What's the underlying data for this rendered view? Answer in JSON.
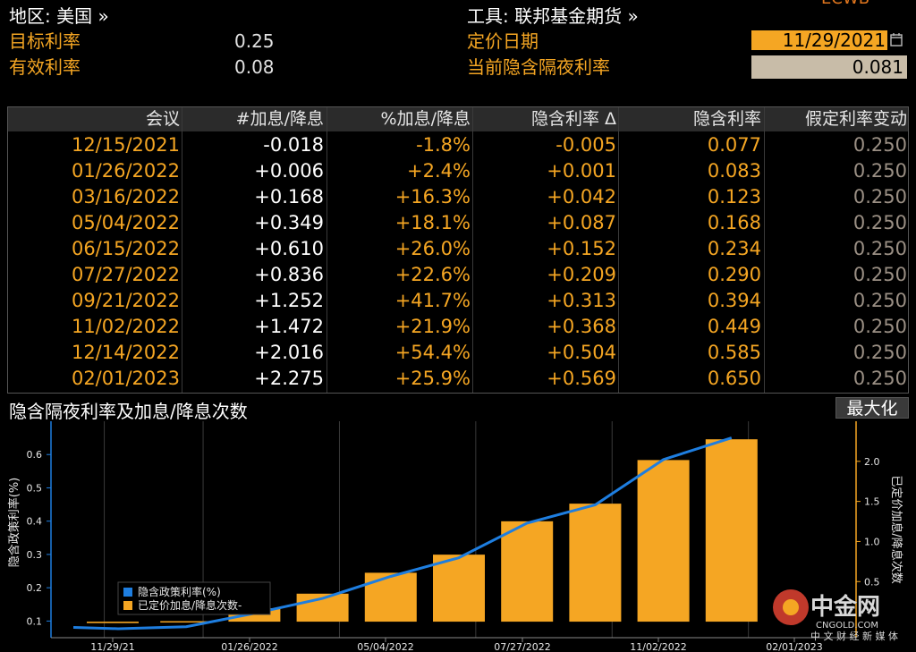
{
  "header": {
    "region_label": "地区: 美国 »",
    "instrument_label": "工具: 联邦基金期货 »",
    "target_rate_label": "目标利率",
    "target_rate_value": "0.25",
    "effective_rate_label": "有效利率",
    "effective_rate_value": "0.08",
    "pricing_date_label": "定价日期",
    "pricing_date_value": "11/29/2021",
    "implied_overnight_label": "当前隐含隔夜利率",
    "implied_overnight_value": "0.081",
    "top_right_cut": "ECWB"
  },
  "table": {
    "columns": [
      "会议",
      "#加息/降息",
      "%加息/降息",
      "隐含利率 Δ",
      "隐含利率",
      "假定利率变动"
    ],
    "rows": [
      [
        "12/15/2021",
        "-0.018",
        "-1.8%",
        "-0.005",
        "0.077",
        "0.250"
      ],
      [
        "01/26/2022",
        "+0.006",
        "+2.4%",
        "+0.001",
        "0.083",
        "0.250"
      ],
      [
        "03/16/2022",
        "+0.168",
        "+16.3%",
        "+0.042",
        "0.123",
        "0.250"
      ],
      [
        "05/04/2022",
        "+0.349",
        "+18.1%",
        "+0.087",
        "0.168",
        "0.250"
      ],
      [
        "06/15/2022",
        "+0.610",
        "+26.0%",
        "+0.152",
        "0.234",
        "0.250"
      ],
      [
        "07/27/2022",
        "+0.836",
        "+22.6%",
        "+0.209",
        "0.290",
        "0.250"
      ],
      [
        "09/21/2022",
        "+1.252",
        "+41.7%",
        "+0.313",
        "0.394",
        "0.250"
      ],
      [
        "11/02/2022",
        "+1.472",
        "+21.9%",
        "+0.368",
        "0.449",
        "0.250"
      ],
      [
        "12/14/2022",
        "+2.016",
        "+54.4%",
        "+0.504",
        "0.585",
        "0.250"
      ],
      [
        "02/01/2023",
        "+2.275",
        "+25.9%",
        "+0.569",
        "0.650",
        "0.250"
      ]
    ]
  },
  "chart": {
    "title": "隐含隔夜利率及加息/降息次数",
    "maximize_label": "最大化",
    "watermark_brand": "中金网",
    "watermark_url": "CNGOLD.COM",
    "watermark_tagline": "中 文 财 经 新 媒 体"
  },
  "colors": {
    "bar": "#f5a623",
    "line": "#1e7ee0",
    "accent": "#f5a623"
  },
  "chart_data": {
    "type": "bar",
    "title": "隐含隔夜利率及加息/降息次数",
    "categories": [
      "12/15/2021",
      "01/26/2022",
      "03/16/2022",
      "05/04/2022",
      "06/15/2022",
      "07/27/2022",
      "09/21/2022",
      "11/02/2022",
      "12/14/2022",
      "02/01/2023"
    ],
    "series": [
      {
        "name": "隐含政策利率(%)",
        "type": "line",
        "axis": "left",
        "values": [
          0.077,
          0.083,
          0.123,
          0.168,
          0.234,
          0.29,
          0.394,
          0.449,
          0.585,
          0.65
        ]
      },
      {
        "name": "已定价加息/降息次数-",
        "type": "bar",
        "axis": "right",
        "values": [
          -0.018,
          0.006,
          0.168,
          0.349,
          0.61,
          0.836,
          1.252,
          1.472,
          2.016,
          2.275
        ]
      }
    ],
    "x_start_value": 0.081,
    "x_ticks": [
      "11/29/21",
      "01/26/2022",
      "05/04/2022",
      "07/27/2022",
      "11/02/2022",
      "02/01/2023"
    ],
    "ylabel": "隐含政策利率(%)",
    "ylabel_right": "已定价加息/降息次数",
    "ylim": [
      0.05,
      0.7
    ],
    "yticks": [
      "0.1",
      "0.2",
      "0.3",
      "0.4",
      "0.5",
      "0.6"
    ],
    "ylim_right": [
      -0.2,
      2.5
    ],
    "yticks_right": [
      "0.5",
      "1.0",
      "1.5",
      "2.0"
    ],
    "legend": [
      "隐含政策利率(%)",
      "已定价加息/降息次数-"
    ],
    "legend_position": "bottom-left"
  }
}
